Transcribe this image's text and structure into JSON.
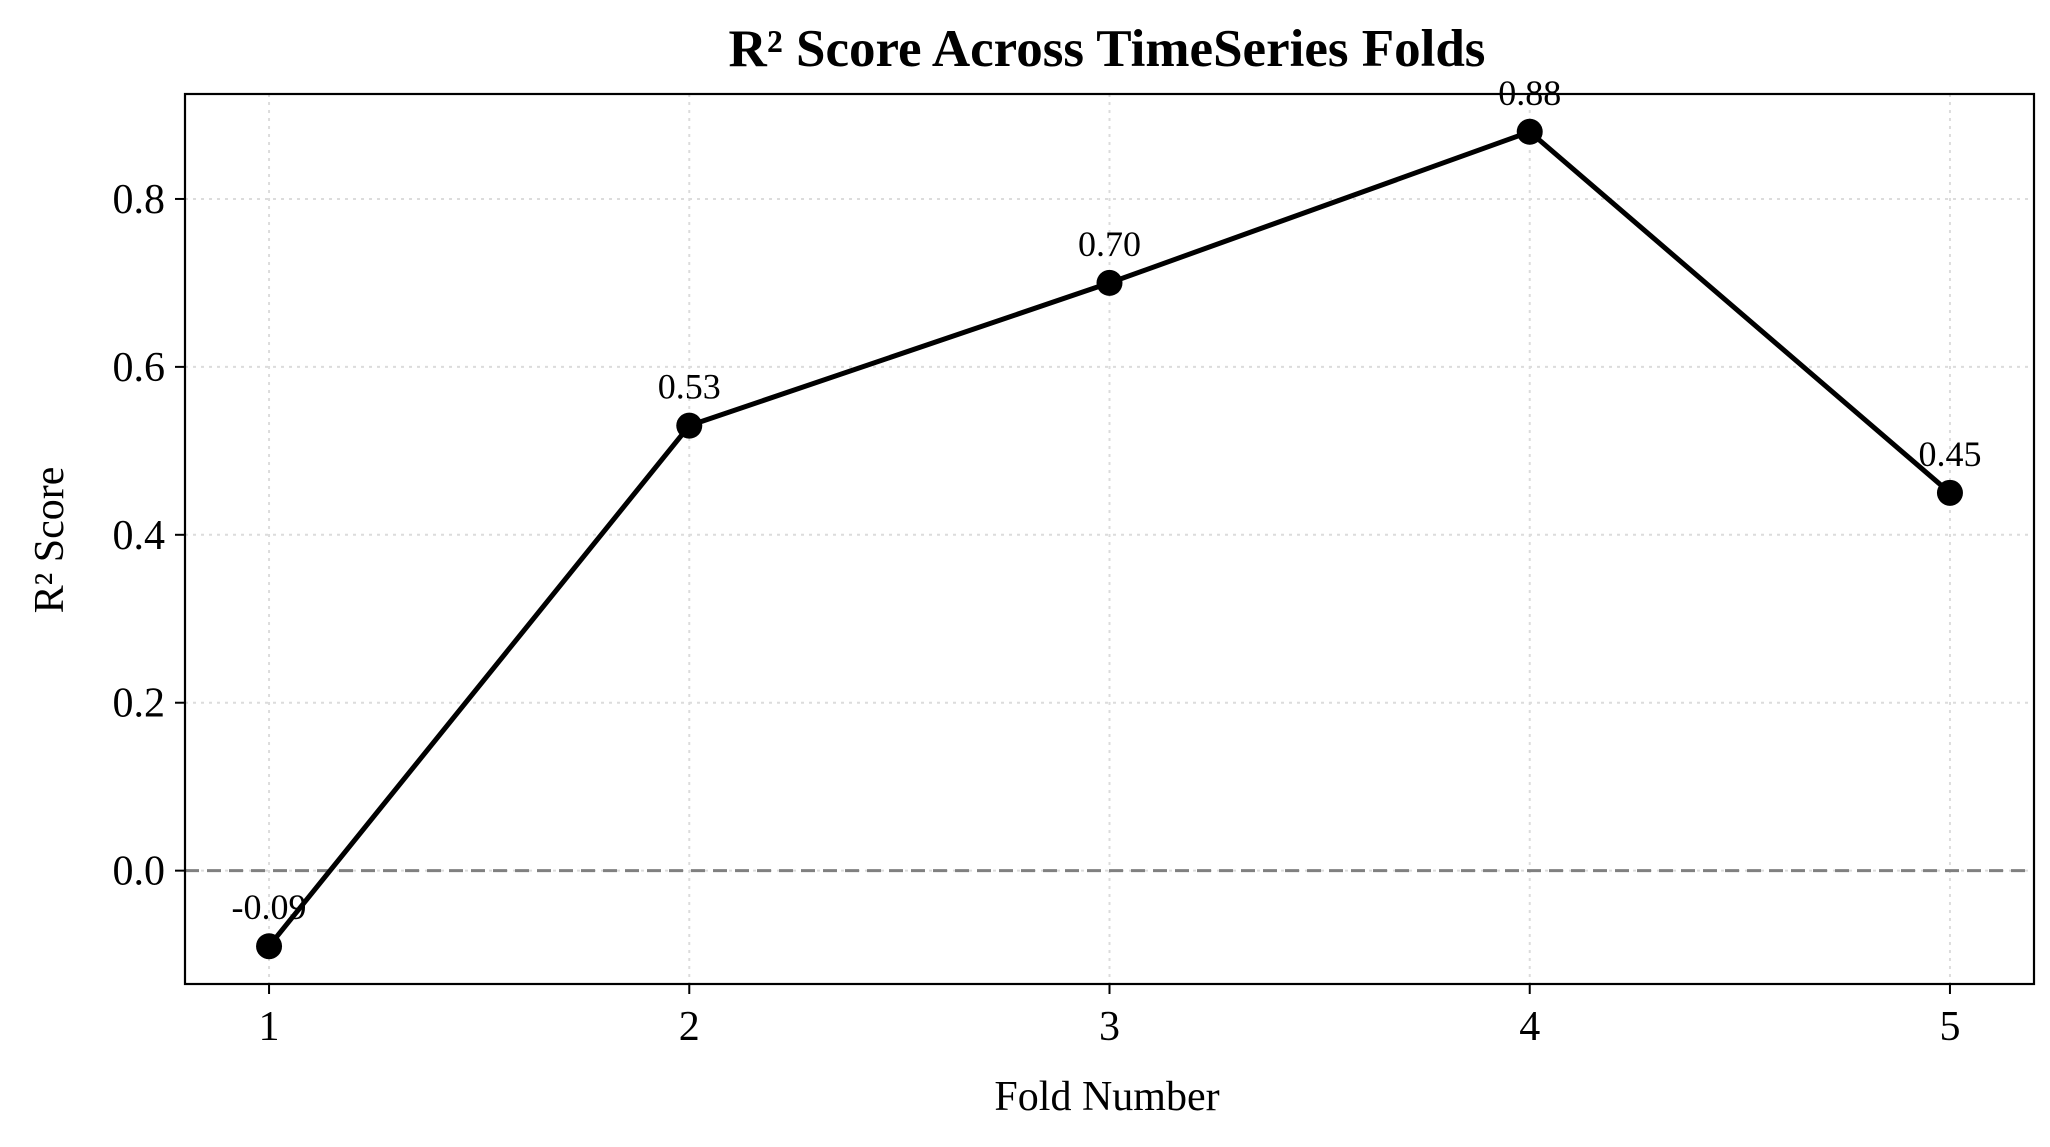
{
  "chart_data": {
    "type": "line",
    "title": "R² Score Across TimeSeries Folds",
    "xlabel": "Fold Number",
    "ylabel": "R² Score",
    "x": [
      1,
      2,
      3,
      4,
      5
    ],
    "x_tick_labels": [
      "1",
      "2",
      "3",
      "4",
      "5"
    ],
    "y_ticks": [
      0.0,
      0.2,
      0.4,
      0.6,
      0.8
    ],
    "y_tick_labels": [
      "0.0",
      "0.2",
      "0.4",
      "0.6",
      "0.8"
    ],
    "series": [
      {
        "values": [
          -0.09,
          0.53,
          0.7,
          0.88,
          0.45
        ],
        "labels": [
          "-0.09",
          "0.53",
          "0.70",
          "0.88",
          "0.45"
        ],
        "color": "#000000",
        "marker": "circle"
      }
    ],
    "xlim": [
      0.8,
      5.2
    ],
    "ylim": [
      -0.135,
      0.925
    ],
    "grid": true,
    "reference_line": {
      "y": 0.0,
      "style": "dashed",
      "color": "#808080"
    }
  }
}
